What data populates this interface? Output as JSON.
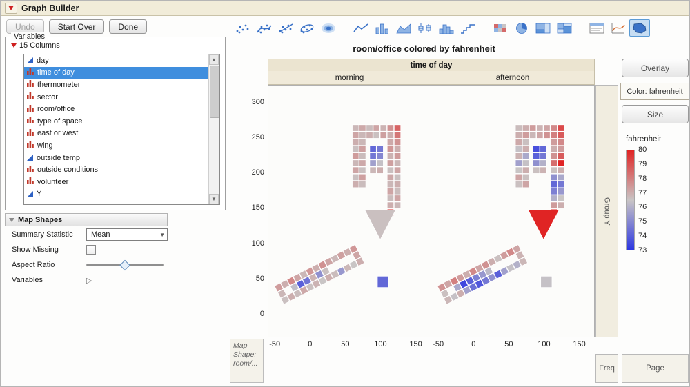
{
  "window": {
    "title": "Graph Builder"
  },
  "toolbar": {
    "undo_label": "Undo",
    "start_over_label": "Start Over",
    "done_label": "Done",
    "icon_groups": [
      [
        "points",
        "smoother",
        "line-of-fit",
        "ellipse",
        "contour"
      ],
      [
        "line",
        "bar",
        "area",
        "box-plot",
        "histogram",
        "cdf-plot"
      ],
      [
        "heatmap",
        "pie",
        "treemap",
        "mosaic"
      ],
      [
        "caption-box",
        "formula",
        "map-shapes"
      ]
    ],
    "selected_icon": "map-shapes"
  },
  "variables_panel": {
    "title": "Variables",
    "columns_label": "15 Columns",
    "items": [
      {
        "label": "day",
        "type": "continuous"
      },
      {
        "label": "time of day",
        "type": "nominal",
        "selected": true
      },
      {
        "label": "thermometer",
        "type": "nominal"
      },
      {
        "label": "sector",
        "type": "nominal"
      },
      {
        "label": "room/office",
        "type": "nominal"
      },
      {
        "label": "type of space",
        "type": "nominal"
      },
      {
        "label": "east or west",
        "type": "nominal"
      },
      {
        "label": "wing",
        "type": "nominal"
      },
      {
        "label": "outside temp",
        "type": "continuous"
      },
      {
        "label": "outside conditions",
        "type": "nominal"
      },
      {
        "label": "volunteer",
        "type": "nominal"
      },
      {
        "label": "Y",
        "type": "continuous"
      }
    ]
  },
  "map_shapes": {
    "title": "Map Shapes",
    "summary_statistic_label": "Summary Statistic",
    "summary_statistic_value": "Mean",
    "show_missing_label": "Show Missing",
    "show_missing_checked": false,
    "aspect_ratio_label": "Aspect Ratio",
    "variables_label": "Variables"
  },
  "chart": {
    "title": "room/office colored by fahrenheit",
    "column_group_label": "time of day",
    "panels": [
      "morning",
      "afternoon"
    ],
    "y_ticks": [
      300,
      250,
      200,
      150,
      100,
      50,
      0
    ],
    "x_ticks": [
      -50,
      0,
      50,
      100,
      150
    ],
    "group_y_label": "Group Y",
    "map_shape_label": "Map Shape: room/...",
    "freq_label": "Freq",
    "page_label": "Page"
  },
  "right_panel": {
    "overlay_label": "Overlay",
    "color_label": "Color: fahrenheit",
    "size_label": "Size"
  },
  "legend": {
    "title": "fahrenheit",
    "ticks": [
      80,
      79,
      78,
      77,
      76,
      75,
      74,
      73
    ],
    "top_color": "#e02424",
    "mid_color": "#c9c5c5",
    "bottom_color": "#2d37e1"
  },
  "chart_data": {
    "type": "heatmap",
    "description": "floor-plan map shapes of room/office colored by mean fahrenheit, faceted by time of day",
    "color_variable": "fahrenheit",
    "color_range": [
      73,
      80
    ],
    "x_range": [
      -60,
      172
    ],
    "y_range": [
      -32,
      325
    ],
    "panels": [
      {
        "name": "morning",
        "triangle_f": 76.6,
        "big_room_f": 74.2,
        "cells": [
          [
            60,
            180,
            77.0
          ],
          [
            70,
            180,
            76.7
          ],
          [
            60,
            190,
            76.6
          ],
          [
            70,
            190,
            77.3
          ],
          [
            60,
            200,
            77.2
          ],
          [
            70,
            200,
            76.6
          ],
          [
            60,
            210,
            76.8
          ],
          [
            70,
            210,
            77.1
          ],
          [
            60,
            220,
            77.4
          ],
          [
            70,
            220,
            76.7
          ],
          [
            60,
            230,
            76.6
          ],
          [
            70,
            230,
            77.3
          ],
          [
            60,
            240,
            77.0
          ],
          [
            70,
            240,
            76.8
          ],
          [
            60,
            250,
            77.2
          ],
          [
            70,
            250,
            76.8
          ],
          [
            80,
            250,
            77.0
          ],
          [
            90,
            250,
            76.6
          ],
          [
            100,
            250,
            77.3
          ],
          [
            110,
            250,
            77.0
          ],
          [
            120,
            250,
            78.2
          ],
          [
            60,
            260,
            76.8
          ],
          [
            70,
            260,
            77.1
          ],
          [
            80,
            260,
            76.7
          ],
          [
            90,
            260,
            77.2
          ],
          [
            100,
            260,
            76.9
          ],
          [
            110,
            260,
            77.6
          ],
          [
            120,
            260,
            78.6
          ],
          [
            110,
            150,
            77.0
          ],
          [
            120,
            150,
            76.8
          ],
          [
            110,
            160,
            76.7
          ],
          [
            120,
            160,
            77.2
          ],
          [
            110,
            170,
            77.2
          ],
          [
            120,
            170,
            76.7
          ],
          [
            110,
            180,
            76.8
          ],
          [
            120,
            180,
            77.0
          ],
          [
            110,
            190,
            77.1
          ],
          [
            120,
            190,
            76.6
          ],
          [
            110,
            200,
            76.6
          ],
          [
            120,
            200,
            77.2
          ],
          [
            110,
            210,
            77.3
          ],
          [
            120,
            210,
            76.8
          ],
          [
            110,
            220,
            76.9
          ],
          [
            120,
            220,
            77.4
          ],
          [
            110,
            230,
            77.5
          ],
          [
            120,
            230,
            77.0
          ],
          [
            110,
            240,
            77.1
          ],
          [
            120,
            240,
            77.6
          ],
          [
            110,
            140,
            80
          ],
          [
            85,
            200,
            76.8
          ],
          [
            95,
            200,
            77.0
          ],
          [
            85,
            210,
            75.6
          ],
          [
            95,
            210,
            76.4
          ],
          [
            85,
            220,
            74.6
          ],
          [
            95,
            220,
            75.0
          ],
          [
            85,
            230,
            74.2
          ],
          [
            95,
            230,
            74.6
          ]
        ],
        "wing_cells": [
          [
            0,
            2,
            77.4
          ],
          [
            1,
            2,
            77.0
          ],
          [
            2,
            2,
            77.8
          ],
          [
            3,
            2,
            77.2
          ],
          [
            4,
            2,
            76.8
          ],
          [
            5,
            2,
            77.5
          ],
          [
            6,
            2,
            77.0
          ],
          [
            7,
            2,
            77.6
          ],
          [
            8,
            2,
            77.2
          ],
          [
            9,
            2,
            76.8
          ],
          [
            10,
            2,
            77.3
          ],
          [
            11,
            2,
            77.0
          ],
          [
            12,
            2,
            77.5
          ],
          [
            0,
            0,
            76.6
          ],
          [
            1,
            0,
            77.0
          ],
          [
            2,
            0,
            76.7
          ],
          [
            3,
            0,
            77.1
          ],
          [
            4,
            0,
            76.6
          ],
          [
            5,
            0,
            76.9
          ],
          [
            6,
            0,
            76.5
          ],
          [
            7,
            0,
            77.0
          ],
          [
            8,
            0,
            76.7
          ],
          [
            9,
            0,
            75.4
          ],
          [
            10,
            0,
            76.8
          ],
          [
            11,
            0,
            76.5
          ],
          [
            12,
            0,
            77.0
          ],
          [
            0,
            1,
            76.8
          ],
          [
            12,
            1,
            77.2
          ],
          [
            2,
            1,
            76.3
          ],
          [
            3,
            1,
            74.0
          ],
          [
            4,
            1,
            74.5
          ],
          [
            5,
            1,
            76.9
          ],
          [
            6,
            1,
            75.2
          ],
          [
            7,
            1,
            76.6
          ]
        ]
      },
      {
        "name": "afternoon",
        "triangle_f": 80,
        "big_room_f": 76.4,
        "cells": [
          [
            60,
            180,
            76.6
          ],
          [
            70,
            180,
            77.2
          ],
          [
            60,
            190,
            77.2
          ],
          [
            70,
            190,
            76.6
          ],
          [
            60,
            200,
            76.5
          ],
          [
            70,
            200,
            77.0
          ],
          [
            60,
            210,
            75.6
          ],
          [
            70,
            210,
            76.4
          ],
          [
            60,
            220,
            76.9
          ],
          [
            70,
            220,
            75.8
          ],
          [
            60,
            230,
            76.4
          ],
          [
            70,
            230,
            77.0
          ],
          [
            60,
            240,
            77.1
          ],
          [
            70,
            240,
            76.6
          ],
          [
            60,
            250,
            77.0
          ],
          [
            70,
            250,
            77.4
          ],
          [
            80,
            250,
            76.8
          ],
          [
            90,
            250,
            77.2
          ],
          [
            100,
            250,
            77.6
          ],
          [
            110,
            250,
            78.0
          ],
          [
            120,
            250,
            78.8
          ],
          [
            60,
            260,
            76.7
          ],
          [
            70,
            260,
            77.0
          ],
          [
            80,
            260,
            77.4
          ],
          [
            90,
            260,
            76.9
          ],
          [
            100,
            260,
            77.2
          ],
          [
            110,
            260,
            77.8
          ],
          [
            120,
            260,
            79.2
          ],
          [
            110,
            150,
            77.4
          ],
          [
            120,
            150,
            77.0
          ],
          [
            110,
            160,
            76.0
          ],
          [
            120,
            160,
            76.5
          ],
          [
            110,
            170,
            74.8
          ],
          [
            120,
            170,
            75.4
          ],
          [
            110,
            180,
            74.2
          ],
          [
            120,
            180,
            74.6
          ],
          [
            110,
            190,
            75.2
          ],
          [
            120,
            190,
            75.8
          ],
          [
            110,
            200,
            76.6
          ],
          [
            120,
            200,
            77.0
          ],
          [
            110,
            210,
            78.4
          ],
          [
            120,
            210,
            80.0
          ],
          [
            110,
            220,
            77.6
          ],
          [
            120,
            220,
            78.8
          ],
          [
            110,
            230,
            77.0
          ],
          [
            120,
            230,
            77.4
          ],
          [
            110,
            240,
            77.4
          ],
          [
            120,
            240,
            77.8
          ],
          [
            110,
            140,
            80
          ],
          [
            85,
            200,
            76.6
          ],
          [
            95,
            200,
            76.9
          ],
          [
            85,
            210,
            75.2
          ],
          [
            95,
            210,
            76.0
          ],
          [
            85,
            220,
            74.0
          ],
          [
            95,
            220,
            74.6
          ],
          [
            85,
            230,
            73.6
          ],
          [
            95,
            230,
            74.2
          ]
        ],
        "wing_cells": [
          [
            0,
            2,
            77.6
          ],
          [
            1,
            2,
            77.2
          ],
          [
            2,
            2,
            78.0
          ],
          [
            3,
            2,
            77.4
          ],
          [
            4,
            2,
            77.0
          ],
          [
            5,
            2,
            77.8
          ],
          [
            6,
            2,
            77.2
          ],
          [
            7,
            2,
            77.6
          ],
          [
            8,
            2,
            77.0
          ],
          [
            9,
            2,
            76.6
          ],
          [
            10,
            2,
            77.4
          ],
          [
            11,
            2,
            77.8
          ],
          [
            12,
            2,
            77.2
          ],
          [
            0,
            0,
            76.8
          ],
          [
            1,
            0,
            76.4
          ],
          [
            2,
            0,
            77.0
          ],
          [
            3,
            0,
            75.6
          ],
          [
            4,
            0,
            74.4
          ],
          [
            5,
            0,
            73.8
          ],
          [
            6,
            0,
            74.6
          ],
          [
            7,
            0,
            75.2
          ],
          [
            8,
            0,
            74.0
          ],
          [
            9,
            0,
            75.6
          ],
          [
            10,
            0,
            76.4
          ],
          [
            11,
            0,
            76.0
          ],
          [
            12,
            0,
            76.8
          ],
          [
            0,
            1,
            76.6
          ],
          [
            12,
            1,
            76.9
          ],
          [
            2,
            1,
            75.8
          ],
          [
            3,
            1,
            73.4
          ],
          [
            4,
            1,
            74.0
          ],
          [
            5,
            1,
            74.8
          ],
          [
            6,
            1,
            75.4
          ],
          [
            7,
            1,
            76.2
          ]
        ]
      }
    ]
  }
}
